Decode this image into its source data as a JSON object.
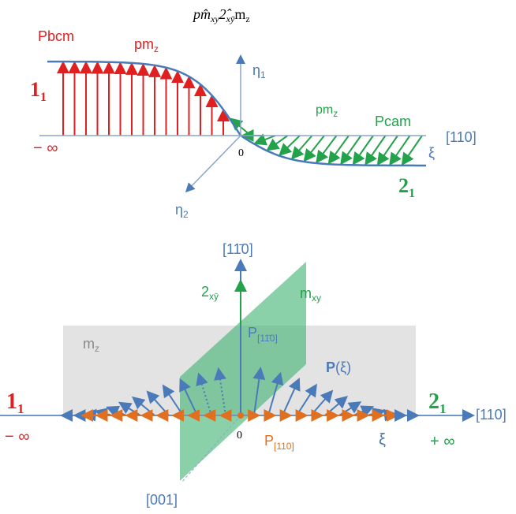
{
  "title": {
    "segments": [
      {
        "text": "pm̂",
        "sub": "xy"
      },
      {
        "text": "2̂",
        "sub": "xȳ"
      },
      {
        "text": "m",
        "sub": "z"
      }
    ]
  },
  "top": {
    "left_group": "Pbcm",
    "left_mirror": {
      "text": "pm",
      "sub": "z"
    },
    "left_domain": {
      "text": "1",
      "sub": "1"
    },
    "eta1": {
      "text": "η",
      "sub": "1"
    },
    "minus_inf": "− ∞",
    "origin": "0",
    "right_mirror": {
      "text": "pm",
      "sub": "z"
    },
    "right_group": "Pcam",
    "axis_label": "[110]",
    "xi": "ξ",
    "right_domain": {
      "text": "2",
      "sub": "1"
    },
    "eta2": {
      "text": "η",
      "sub": "2"
    }
  },
  "bottom": {
    "vertical_axis": "[11̄0]",
    "twofold": {
      "text": "2",
      "sub": "xȳ"
    },
    "mirror_xy": {
      "text": "m",
      "sub": "xy"
    },
    "mirror_z": {
      "text": "m",
      "sub": "z"
    },
    "p_perp": {
      "text": "P",
      "sub": "[11̄0]"
    },
    "p_xi": {
      "bold": "P",
      "text": "(ξ)"
    },
    "left_domain": {
      "text": "1",
      "sub": "1"
    },
    "right_domain": {
      "text": "2",
      "sub": "1"
    },
    "axis_label": "[110]",
    "minus_inf": "− ∞",
    "origin": "0",
    "p_par": {
      "text": "P",
      "sub": "[110]"
    },
    "xi": "ξ",
    "plus_inf": "+ ∞",
    "depth_axis": "[001]"
  }
}
